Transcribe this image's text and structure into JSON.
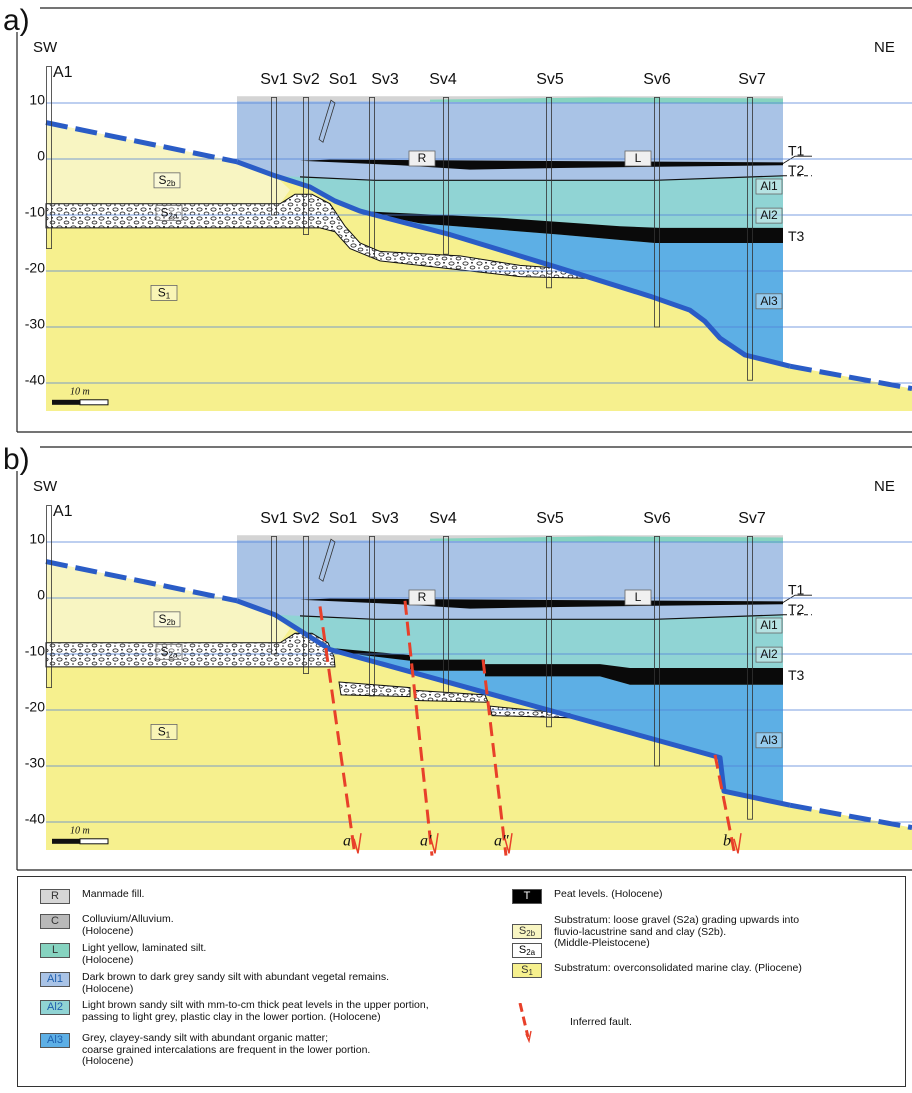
{
  "panels": [
    {
      "label": "a)",
      "sw": "SW",
      "ne": "NE",
      "boreholes": [
        "A1",
        "Sv1",
        "Sv2",
        "So1",
        "Sv3",
        "Sv4",
        "Sv5",
        "Sv6",
        "Sv7"
      ],
      "depths": [
        10,
        0,
        -10,
        -20,
        -30,
        -40
      ],
      "units": [
        {
          "text": "R"
        },
        {
          "text": "L"
        },
        {
          "text": "Al1"
        },
        {
          "text": "Al2"
        },
        {
          "text": "Al3"
        },
        {
          "text": "S",
          "sub": "2b"
        },
        {
          "text": "S",
          "sub": "2a"
        },
        {
          "text": "S",
          "sub": "1"
        }
      ],
      "peat": [
        "T1",
        "T2",
        "T3"
      ],
      "scale": "10 m"
    },
    {
      "label": "b)",
      "sw": "SW",
      "ne": "NE",
      "boreholes": [
        "A1",
        "Sv1",
        "Sv2",
        "So1",
        "Sv3",
        "Sv4",
        "Sv5",
        "Sv6",
        "Sv7"
      ],
      "depths": [
        10,
        0,
        -10,
        -20,
        -30,
        -40
      ],
      "units": [
        {
          "text": "R"
        },
        {
          "text": "L"
        },
        {
          "text": "Al1"
        },
        {
          "text": "Al2"
        },
        {
          "text": "Al3"
        },
        {
          "text": "S",
          "sub": "2b"
        },
        {
          "text": "S",
          "sub": "2a"
        },
        {
          "text": "S",
          "sub": "1"
        }
      ],
      "peat": [
        "T1",
        "T2",
        "T3"
      ],
      "scale": "10 m",
      "faults": [
        "a",
        "a′",
        "a″",
        "b"
      ]
    }
  ],
  "legend": [
    {
      "symbol": {
        "text": "R"
      },
      "lines": [
        "Manmade fill."
      ]
    },
    {
      "symbol": {
        "text": "C"
      },
      "lines": [
        "Colluvium/Alluvium.",
        "(Holocene)"
      ]
    },
    {
      "symbol": {
        "text": "L"
      },
      "lines": [
        "Light yellow, laminated silt.",
        "(Holocene)"
      ]
    },
    {
      "symbol": {
        "text": "Al1"
      },
      "lines": [
        "Dark brown to dark grey sandy silt with abundant vegetal remains.",
        "(Holocene)"
      ]
    },
    {
      "symbol": {
        "text": "Al2"
      },
      "lines": [
        "Light brown sandy silt with mm-to-cm thick peat levels in the upper portion,",
        "passing to light grey, plastic clay in the lower portion. (Holocene)"
      ]
    },
    {
      "symbol": {
        "text": "Al3"
      },
      "lines": [
        "Grey, clayey-sandy silt with abundant organic matter;",
        "coarse grained intercalations are frequent in the lower portion.",
        "(Holocene)"
      ]
    },
    {
      "symbol": {
        "text": "T"
      },
      "lines": [
        "Peat levels. (Holocene)"
      ]
    },
    {
      "symbol": {
        "text": "S",
        "sub": "2b"
      },
      "symbol2": {
        "text": "S",
        "sub": "2a"
      },
      "lines": [
        "Substratum: loose gravel (S2a) grading upwards into",
        "fluvio-lacustrine sand and clay (S2b).",
        "(Middle-Pleistocene)"
      ]
    },
    {
      "symbol": {
        "text": "S",
        "sub": "1"
      },
      "lines": [
        "Substratum: overconsolidated marine clay. (Pliocene)"
      ]
    },
    {
      "lines": [
        "Inferred fault."
      ]
    }
  ]
}
